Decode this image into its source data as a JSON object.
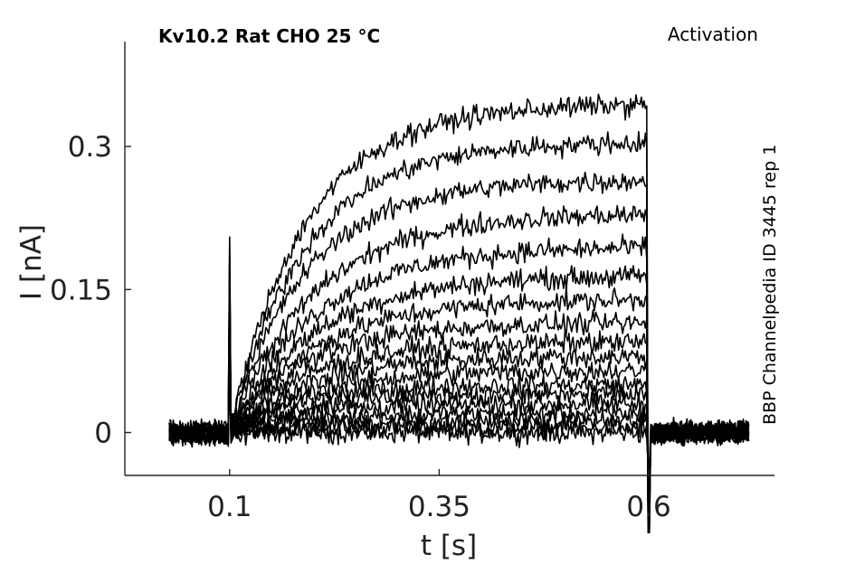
{
  "chart_data": {
    "type": "line",
    "title": "Kv10.2  Rat  CHO  25 °C",
    "subtitle": "Activation",
    "side_label": "BBP Channelpedia ID 3445 rep 1",
    "xlabel": "t [s]",
    "ylabel": "I [nA]",
    "x_ticks": [
      0.1,
      0.35,
      0.6
    ],
    "x_tick_labels": [
      "0.1",
      "0.35",
      "0.6"
    ],
    "y_ticks": [
      0,
      0.15,
      0.3
    ],
    "y_tick_labels": [
      "0",
      "0.15",
      "0.3"
    ],
    "xlim": [
      -0.025,
      0.75
    ],
    "ylim": [
      -0.045,
      0.41
    ],
    "grid": false,
    "legend": "none",
    "pulse": {
      "start": 0.1,
      "end": 0.6,
      "record_start": 0.028,
      "record_end": 0.72
    },
    "onset_spike_peak": 0.205,
    "offset_spike_min": -0.105,
    "series": [
      {
        "steady_state": 0.0,
        "tau": 0.08
      },
      {
        "steady_state": 0.005,
        "tau": 0.08
      },
      {
        "steady_state": 0.012,
        "tau": 0.08
      },
      {
        "steady_state": 0.02,
        "tau": 0.08
      },
      {
        "steady_state": 0.03,
        "tau": 0.08
      },
      {
        "steady_state": 0.04,
        "tau": 0.08
      },
      {
        "steady_state": 0.05,
        "tau": 0.08
      },
      {
        "steady_state": 0.065,
        "tau": 0.09
      },
      {
        "steady_state": 0.08,
        "tau": 0.09
      },
      {
        "steady_state": 0.095,
        "tau": 0.09
      },
      {
        "steady_state": 0.115,
        "tau": 0.09
      },
      {
        "steady_state": 0.14,
        "tau": 0.1
      },
      {
        "steady_state": 0.165,
        "tau": 0.1
      },
      {
        "steady_state": 0.195,
        "tau": 0.1
      },
      {
        "steady_state": 0.23,
        "tau": 0.1
      },
      {
        "steady_state": 0.265,
        "tau": 0.09
      },
      {
        "steady_state": 0.305,
        "tau": 0.09
      },
      {
        "steady_state": 0.345,
        "tau": 0.09
      }
    ]
  }
}
